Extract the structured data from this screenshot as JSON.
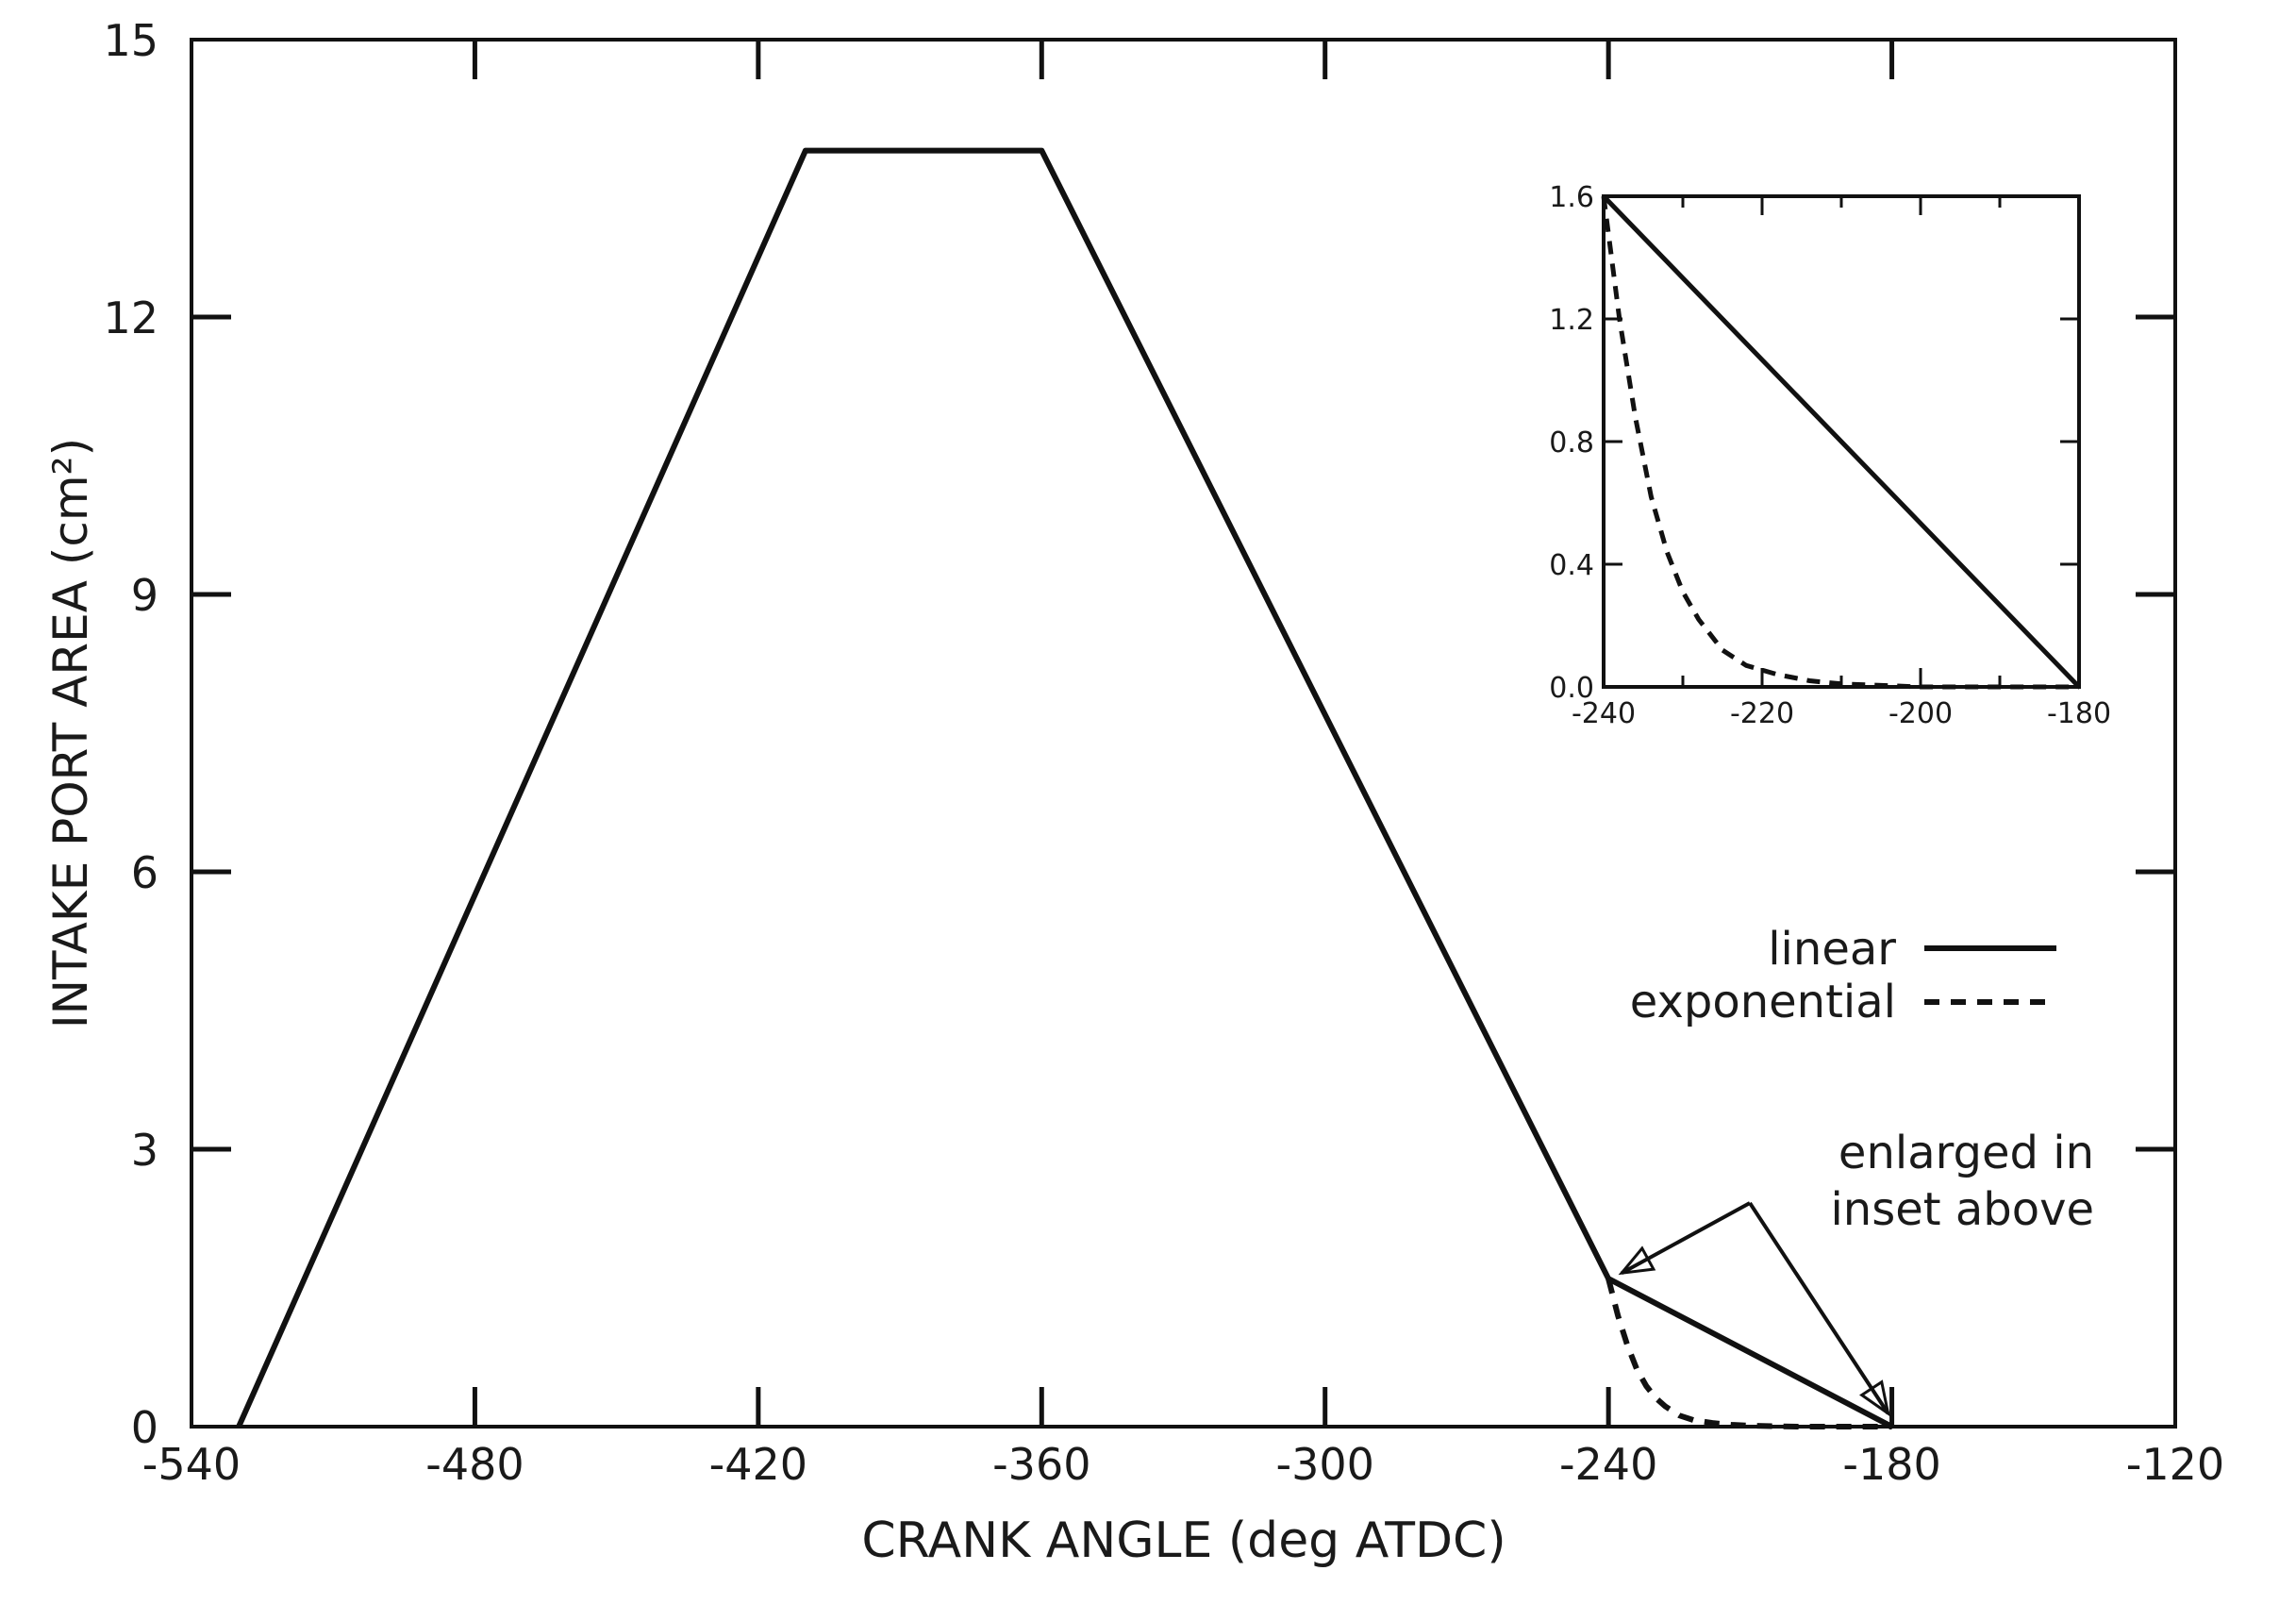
{
  "chart_data": {
    "type": "line",
    "title": "",
    "xlabel": "CRANK ANGLE (deg ATDC)",
    "ylabel": "INTAKE PORT AREA (cm²)",
    "xlim": [
      -540,
      -120
    ],
    "ylim": [
      0,
      15
    ],
    "xticks": [
      "-540",
      "-480",
      "-420",
      "-360",
      "-300",
      "-240",
      "-180",
      "-120"
    ],
    "yticks": [
      "0",
      "3",
      "6",
      "9",
      "12",
      "15"
    ],
    "series": [
      {
        "name": "linear",
        "style": "solid",
        "x": [
          -530,
          -410,
          -360,
          -240,
          -180
        ],
        "y": [
          0,
          13.8,
          13.8,
          1.6,
          0
        ]
      },
      {
        "name": "exponential",
        "style": "dashed",
        "x": [
          -240,
          -238,
          -236,
          -234,
          -232,
          -230,
          -228,
          -225,
          -222,
          -218,
          -214,
          -210,
          -200,
          -190,
          -180
        ],
        "y": [
          1.6,
          1.2,
          0.88,
          0.62,
          0.44,
          0.31,
          0.22,
          0.12,
          0.07,
          0.04,
          0.02,
          0.01,
          0.0,
          0.0,
          0.0
        ]
      }
    ],
    "legend": {
      "position": "right",
      "entries": [
        "linear",
        "exponential"
      ]
    },
    "annotation": {
      "line1": "enlarged in",
      "line2": "inset above",
      "targets_x": [
        -240,
        -180
      ]
    },
    "inset": {
      "xlim": [
        -240,
        -180
      ],
      "ylim": [
        0,
        1.6
      ],
      "xticks": [
        "-240",
        "-220",
        "-200",
        "-180"
      ],
      "yticks": [
        "0.0",
        "0.4",
        "0.8",
        "1.2",
        "1.6"
      ]
    }
  },
  "colors": {
    "ink": "#111111",
    "background": "#ffffff"
  }
}
